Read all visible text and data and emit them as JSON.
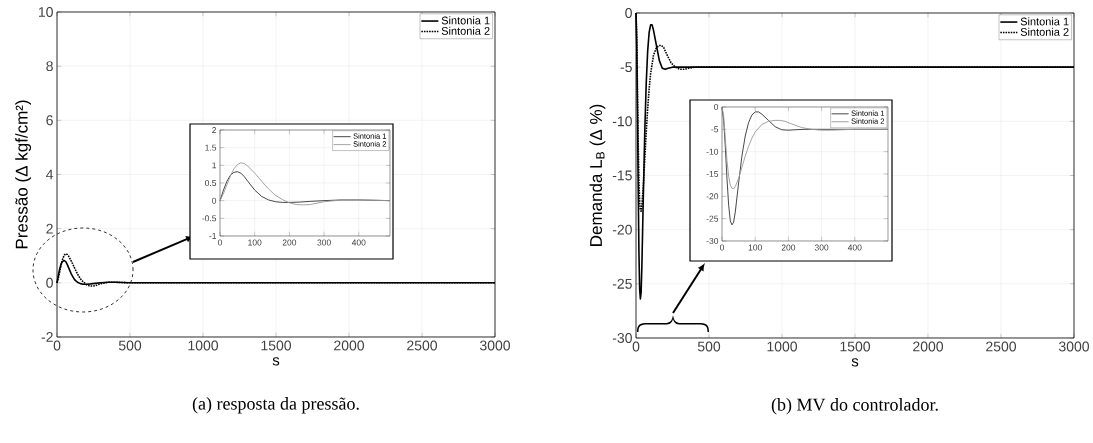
{
  "chart_data": [
    {
      "type": "line",
      "xlabel": "s",
      "ylabel": "Pressão (Δ kgf/cm²)",
      "xlim": [
        0,
        3000
      ],
      "ylim": [
        -2,
        10
      ],
      "xticks": [
        0,
        500,
        1000,
        1500,
        2000,
        2500,
        3000
      ],
      "yticks": [
        -2,
        0,
        2,
        4,
        6,
        8,
        10
      ],
      "grid": true,
      "legend": "top right",
      "annotations": [
        "(a) resposta da pressão."
      ],
      "series": [
        {
          "name": "Sintonia 1",
          "color": "#000000",
          "line_style": "solid",
          "x": [
            0,
            10,
            20,
            30,
            40,
            50,
            60,
            70,
            80,
            100,
            120,
            140,
            160,
            180,
            200,
            230,
            260,
            300,
            350,
            400,
            450,
            500,
            3000
          ],
          "values": [
            0,
            0.3,
            0.55,
            0.72,
            0.8,
            0.82,
            0.78,
            0.68,
            0.55,
            0.3,
            0.12,
            0.02,
            -0.03,
            -0.05,
            -0.05,
            -0.04,
            -0.02,
            0,
            0.02,
            0.02,
            0.01,
            0,
            0
          ]
        },
        {
          "name": "Sintonia 2",
          "color": "#000000",
          "line_style": "dotted",
          "x": [
            0,
            10,
            20,
            30,
            40,
            50,
            60,
            70,
            80,
            100,
            120,
            140,
            160,
            180,
            200,
            220,
            240,
            260,
            280,
            300,
            350,
            400,
            450,
            500,
            3000
          ],
          "values": [
            0,
            0.2,
            0.45,
            0.7,
            0.9,
            1.02,
            1.07,
            1.05,
            0.98,
            0.78,
            0.55,
            0.33,
            0.15,
            0.03,
            -0.06,
            -0.11,
            -0.12,
            -0.11,
            -0.07,
            -0.03,
            0.02,
            0.02,
            0.01,
            0,
            0
          ]
        }
      ]
    },
    {
      "type": "line",
      "xlim": [
        0,
        490
      ],
      "ylim": [
        -1,
        2
      ],
      "xticks": [
        0,
        100,
        200,
        300,
        400
      ],
      "yticks": [
        -1,
        -0.5,
        0,
        0.5,
        1,
        1.5,
        2
      ],
      "grid": true,
      "legend": "top right",
      "series": [
        {
          "name": "Sintonia 1",
          "color": "#333333",
          "line_style": "solid",
          "x": [
            0,
            10,
            20,
            30,
            40,
            50,
            60,
            70,
            80,
            100,
            120,
            140,
            160,
            180,
            200,
            230,
            260,
            300,
            350,
            400,
            450,
            490
          ],
          "values": [
            0,
            0.3,
            0.55,
            0.72,
            0.8,
            0.82,
            0.78,
            0.68,
            0.55,
            0.3,
            0.12,
            0.02,
            -0.03,
            -0.05,
            -0.05,
            -0.04,
            -0.02,
            0,
            0.02,
            0.02,
            0.01,
            0
          ]
        },
        {
          "name": "Sintonia 2",
          "color": "#999999",
          "line_style": "solid",
          "x": [
            0,
            10,
            20,
            30,
            40,
            50,
            60,
            70,
            80,
            100,
            120,
            140,
            160,
            180,
            200,
            220,
            240,
            260,
            280,
            300,
            350,
            400,
            450,
            490
          ],
          "values": [
            0,
            0.2,
            0.45,
            0.7,
            0.9,
            1.02,
            1.07,
            1.05,
            0.98,
            0.78,
            0.55,
            0.33,
            0.15,
            0.03,
            -0.06,
            -0.11,
            -0.12,
            -0.11,
            -0.07,
            -0.03,
            0.02,
            0.02,
            0.01,
            0
          ]
        }
      ]
    },
    {
      "type": "line",
      "xlabel": "s",
      "ylabel": "Demanda L$_{B}$ (Δ %)",
      "xlim": [
        0,
        3000
      ],
      "ylim": [
        -30,
        0
      ],
      "xticks": [
        0,
        500,
        1000,
        1500,
        2000,
        2500,
        3000
      ],
      "yticks": [
        -30,
        -25,
        -20,
        -15,
        -10,
        -5,
        0
      ],
      "grid": true,
      "legend": "top right",
      "annotations": [
        "(b) MV do controlador."
      ],
      "series": [
        {
          "name": "Sintonia 1",
          "color": "#000000",
          "line_style": "solid",
          "x": [
            0,
            5,
            10,
            15,
            20,
            25,
            30,
            35,
            40,
            50,
            60,
            70,
            80,
            90,
            100,
            110,
            120,
            140,
            160,
            180,
            200,
            220,
            250,
            300,
            400,
            500,
            3000
          ],
          "values": [
            0,
            -3,
            -9,
            -16,
            -22,
            -25.5,
            -26.4,
            -25.8,
            -23.5,
            -17,
            -11,
            -6.5,
            -3.5,
            -1.8,
            -1.1,
            -1.1,
            -1.6,
            -3,
            -4.4,
            -5.1,
            -5.2,
            -5.1,
            -5,
            -5,
            -5,
            -5,
            -5
          ]
        },
        {
          "name": "Sintonia 2",
          "color": "#000000",
          "line_style": "dotted",
          "x": [
            0,
            5,
            10,
            15,
            20,
            25,
            30,
            35,
            40,
            50,
            60,
            70,
            80,
            90,
            100,
            120,
            140,
            160,
            175,
            190,
            210,
            240,
            270,
            300,
            330,
            360,
            400,
            500,
            3000
          ],
          "values": [
            0,
            -2,
            -7,
            -12,
            -15.5,
            -17.5,
            -18.2,
            -18.3,
            -17.8,
            -16,
            -13.5,
            -11,
            -8.8,
            -7,
            -5.6,
            -3.9,
            -3.2,
            -3,
            -3,
            -3.2,
            -3.8,
            -4.6,
            -5,
            -5.2,
            -5.2,
            -5.1,
            -5,
            -5,
            -5
          ]
        }
      ]
    },
    {
      "type": "line",
      "xlim": [
        0,
        500
      ],
      "ylim": [
        -30,
        0
      ],
      "xticks": [
        0,
        100,
        200,
        300,
        400
      ],
      "yticks": [
        -30,
        -25,
        -20,
        -15,
        -10,
        -5,
        0
      ],
      "grid": true,
      "legend": "top right",
      "series": [
        {
          "name": "Sintonia 1",
          "color": "#333333",
          "line_style": "solid",
          "x": [
            0,
            5,
            10,
            15,
            20,
            25,
            30,
            35,
            40,
            50,
            60,
            70,
            80,
            90,
            100,
            110,
            120,
            140,
            160,
            180,
            200,
            220,
            250,
            300,
            400,
            500
          ],
          "values": [
            0,
            -3,
            -9,
            -16,
            -22,
            -25.5,
            -26.4,
            -25.8,
            -23.5,
            -17,
            -11,
            -6.5,
            -3.5,
            -1.8,
            -1.1,
            -1.1,
            -1.6,
            -3,
            -4.4,
            -5.1,
            -5.2,
            -5.1,
            -5,
            -5,
            -5,
            -5
          ]
        },
        {
          "name": "Sintonia 2",
          "color": "#999999",
          "line_style": "solid",
          "x": [
            0,
            5,
            10,
            15,
            20,
            25,
            30,
            35,
            40,
            50,
            60,
            70,
            80,
            90,
            100,
            120,
            140,
            160,
            175,
            190,
            210,
            240,
            270,
            300,
            330,
            360,
            400,
            500
          ],
          "values": [
            0,
            -2,
            -7,
            -12,
            -15.5,
            -17.5,
            -18.2,
            -18.3,
            -17.8,
            -16,
            -13.5,
            -11,
            -8.8,
            -7,
            -5.6,
            -3.9,
            -3.2,
            -3,
            -3,
            -3.2,
            -3.8,
            -4.6,
            -5,
            -5.2,
            -5.2,
            -5.1,
            -5,
            -5
          ]
        }
      ]
    }
  ]
}
